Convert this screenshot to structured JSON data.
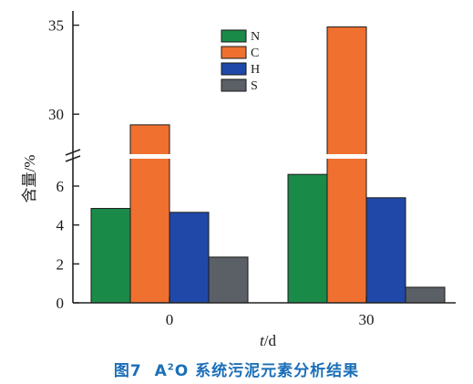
{
  "chart_data": {
    "type": "bar",
    "categories": [
      "0",
      "30"
    ],
    "series": [
      {
        "name": "N",
        "values": [
          4.85,
          6.6
        ],
        "color": "#1a8a48"
      },
      {
        "name": "C",
        "values": [
          29.4,
          34.9
        ],
        "color": "#f07030"
      },
      {
        "name": "H",
        "values": [
          4.65,
          5.4
        ],
        "color": "#1f48a8"
      },
      {
        "name": "S",
        "values": [
          2.35,
          0.8
        ],
        "color": "#5a6066"
      }
    ],
    "xlabel": "t/d",
    "xlabel_var": "t",
    "xlabel_unit": "/d",
    "ylabel": "含量/%",
    "y_axis_break": true,
    "y_lower_range": [
      0,
      7.5
    ],
    "y_upper_range": [
      27.6,
      35.8
    ],
    "y_ticks_lower": [
      "0",
      "2",
      "4",
      "6"
    ],
    "y_ticks_upper": [
      "30",
      "35"
    ],
    "legend_placement": "top-center",
    "grid": false
  },
  "caption": {
    "prefix": "图7",
    "a": "A",
    "sup": "2",
    "rest": "O 系统污泥元素分析结果"
  }
}
